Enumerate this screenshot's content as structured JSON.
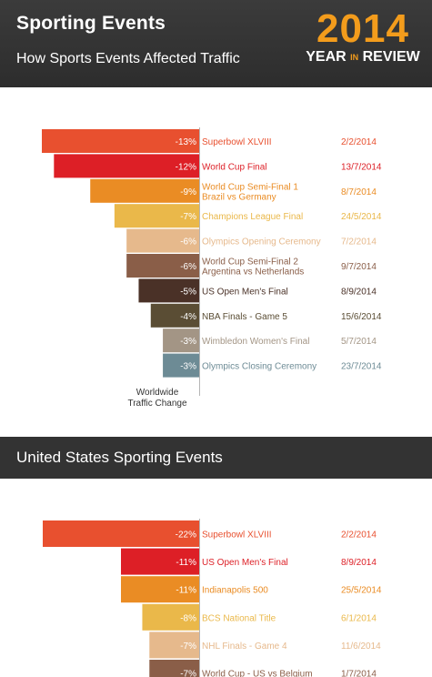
{
  "header": {
    "title": "Sporting Events",
    "subtitle": "How Sports Events Affected Traffic",
    "badge_year": "2014",
    "badge_year_label": "YEAR",
    "badge_in": "IN",
    "badge_review": "REVIEW"
  },
  "section2": {
    "title": "United States Sporting Events"
  },
  "chart_data": [
    {
      "type": "bar",
      "orientation": "horizontal",
      "title": "",
      "xlabel": "Worldwide Traffic Change",
      "ylabel": "",
      "categories": [
        "Superbowl XLVIII",
        "World Cup Final",
        "World Cup Semi-Final 1\nBrazil vs Germany",
        "Champions League Final",
        "Olympics Opening Ceremony",
        "World Cup Semi-Final 2\nArgentina vs Netherlands",
        "US Open Men's Final",
        "NBA Finals - Game 5",
        "Wimbledon Women's Final",
        "Olympics Closing Ceremony"
      ],
      "values": [
        -13,
        -12,
        -9,
        -7,
        -6,
        -6,
        -5,
        -4,
        -3,
        -3
      ],
      "value_labels": [
        "-13%",
        "-12%",
        "-9%",
        "-7%",
        "-6%",
        "-6%",
        "-5%",
        "-4%",
        "-3%",
        "-3%"
      ],
      "dates": [
        "2/2/2014",
        "13/7/2014",
        "8/7/2014",
        "24/5/2014",
        "7/2/2014",
        "9/7/2014",
        "8/9/2014",
        "15/6/2014",
        "5/7/2014",
        "23/7/2014"
      ],
      "colors": [
        "#e8502f",
        "#dd1f26",
        "#ea8c24",
        "#eab84a",
        "#e6b98c",
        "#8a5e48",
        "#4a3127",
        "#5a4d34",
        "#a39585",
        "#6d8b95"
      ],
      "text_colors": [
        "#e8502f",
        "#dd1f26",
        "#ea8c24",
        "#eab84a",
        "#e6b98c",
        "#8a5e48",
        "#4a3127",
        "#5a4d34",
        "#a39585",
        "#6d8b95"
      ],
      "xlim": [
        -13,
        0
      ],
      "grid": false,
      "legend": "none"
    },
    {
      "type": "bar",
      "orientation": "horizontal",
      "title": "",
      "xlabel": "",
      "ylabel": "",
      "categories": [
        "Superbowl XLVIII",
        "US Open Men's Final",
        "Indianapolis 500",
        "BCS National Title",
        "NHL Finals - Game 4",
        "World Cup - US vs Belgium"
      ],
      "values": [
        -22,
        -11,
        -11,
        -8,
        -7,
        -7
      ],
      "value_labels": [
        "-22%",
        "-11%",
        "-11%",
        "-8%",
        "-7%",
        "-7%"
      ],
      "dates": [
        "2/2/2014",
        "8/9/2014",
        "25/5/2014",
        "6/1/2014",
        "11/6/2014",
        "1/7/2014"
      ],
      "colors": [
        "#e8502f",
        "#dd1f26",
        "#ea8c24",
        "#eab84a",
        "#e6b98c",
        "#8a5e48"
      ],
      "text_colors": [
        "#e8502f",
        "#dd1f26",
        "#ea8c24",
        "#eab84a",
        "#e6b98c",
        "#8a5e48"
      ],
      "grid": false,
      "legend": "none"
    }
  ]
}
